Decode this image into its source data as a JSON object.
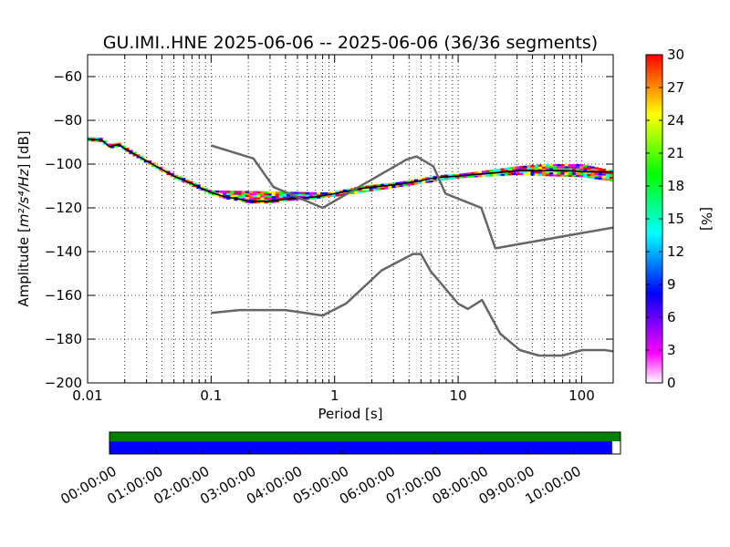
{
  "chart_data": {
    "type": "heatmap",
    "title": "GU.IMI..HNE   2025-06-06 -- 2025-06-06  (36/36 segments)",
    "xlabel": "Period [s]",
    "ylabel_main": "Amplitude [",
    "ylabel_units": "m²/s⁴/Hz",
    "ylabel_tail": "] [dB]",
    "x_scale": "log",
    "xlim": [
      0.01,
      180
    ],
    "ylim": [
      -200,
      -50
    ],
    "x_ticks": [
      0.01,
      0.1,
      1,
      10,
      100
    ],
    "x_tick_labels": [
      "0.01",
      "0.1",
      "1",
      "10",
      "100"
    ],
    "y_ticks": [
      -200,
      -180,
      -160,
      -140,
      -120,
      -100,
      -80,
      -60
    ],
    "y_tick_labels": [
      "−200",
      "−180",
      "−160",
      "−140",
      "−120",
      "−100",
      "−80",
      "−60"
    ],
    "grid": true,
    "colorbar": {
      "label": "[%]",
      "range": [
        0,
        30
      ],
      "ticks": [
        0,
        3,
        6,
        9,
        12,
        15,
        18,
        21,
        24,
        27,
        30
      ],
      "tick_labels": [
        "0",
        "3",
        "6",
        "9",
        "12",
        "15",
        "18",
        "21",
        "24",
        "27",
        "30"
      ],
      "colormap": [
        "#ffffff",
        "#ff00ff",
        "#8000ff",
        "#0000ff",
        "#0080ff",
        "#00ffff",
        "#00ff80",
        "#00ff00",
        "#80ff00",
        "#ffff00",
        "#ff8000",
        "#ff0000"
      ]
    },
    "noise_models": [
      {
        "name": "high",
        "color": "#666666",
        "x": [
          0.1,
          0.22,
          0.32,
          0.8,
          3.8,
          4.6,
          6.3,
          7.9,
          15.4,
          20,
          180
        ],
        "y": [
          -91.5,
          -97.4,
          -110.5,
          -120,
          -98,
          -96.5,
          -101,
          -113.5,
          -120,
          -138.5,
          -129
        ]
      },
      {
        "name": "low",
        "color": "#666666",
        "x": [
          0.1,
          0.17,
          0.4,
          0.8,
          1.24,
          2.4,
          4.3,
          5.0,
          6.0,
          10,
          12,
          15.6,
          21.9,
          31.6,
          45,
          70,
          101,
          154,
          180
        ],
        "y": [
          -168,
          -166.7,
          -166.7,
          -169.2,
          -163.7,
          -148.6,
          -141.1,
          -141.1,
          -149,
          -163.8,
          -166.2,
          -162.1,
          -177.5,
          -185,
          -187.5,
          -187.5,
          -185,
          -185,
          -185.6
        ]
      }
    ],
    "psd_median": {
      "x": [
        0.01,
        0.013,
        0.015,
        0.018,
        0.02,
        0.025,
        0.03,
        0.04,
        0.05,
        0.07,
        0.1,
        0.13,
        0.17,
        0.2,
        0.25,
        0.3,
        0.4,
        0.5,
        0.7,
        1,
        1.5,
        2,
        3,
        4,
        5,
        7,
        10,
        15,
        20,
        30,
        50,
        80,
        100,
        180
      ],
      "y": [
        -88.5,
        -89,
        -92,
        -91,
        -93,
        -96,
        -98.5,
        -102.5,
        -105.5,
        -109,
        -113,
        -115,
        -116,
        -117,
        -117,
        -117,
        -116,
        -115.5,
        -115,
        -113.5,
        -111.5,
        -110.5,
        -109.5,
        -108.5,
        -107.5,
        -106,
        -105.5,
        -104.5,
        -104,
        -103,
        -103,
        -103,
        -103.5,
        -103.5
      ]
    },
    "spread": [
      {
        "x": 0.1,
        "lo": -114,
        "hi": -112
      },
      {
        "x": 1,
        "lo": -115,
        "hi": -113
      },
      {
        "x": 10,
        "lo": -106.5,
        "hi": -104.5
      },
      {
        "x": 30,
        "lo": -105,
        "hi": -101
      },
      {
        "x": 50,
        "lo": -105.5,
        "hi": -100
      },
      {
        "x": 100,
        "lo": -106,
        "hi": -100
      },
      {
        "x": 180,
        "lo": -108,
        "hi": -103
      }
    ],
    "timeline": {
      "labels": [
        "00:00:00",
        "01:00:00",
        "02:00:00",
        "03:00:00",
        "04:00:00",
        "05:00:00",
        "06:00:00",
        "07:00:00",
        "08:00:00",
        "09:00:00",
        "10:00:00"
      ],
      "span_hours": 11,
      "data_coverage_hours": [
        0,
        11
      ],
      "segment_coverage_hours": [
        0,
        10.82
      ],
      "data_color": "#008000",
      "segment_color": "#0000ff"
    }
  }
}
